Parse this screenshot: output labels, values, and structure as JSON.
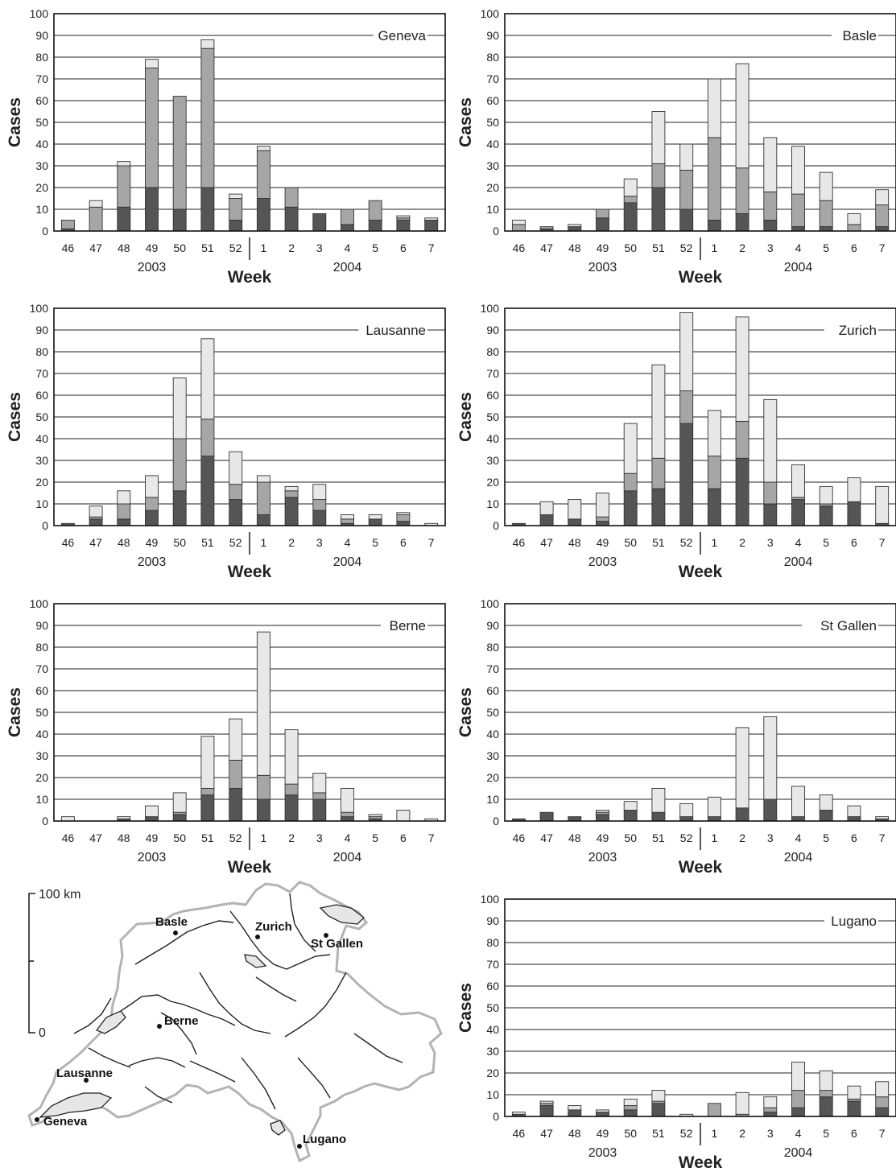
{
  "axis": {
    "ylabel": "Cases",
    "xlabel": "Week",
    "yticks": [
      0,
      10,
      20,
      30,
      40,
      50,
      60,
      70,
      80,
      90,
      100
    ],
    "week_ticks": [
      "46",
      "47",
      "48",
      "49",
      "50",
      "51",
      "52",
      "1",
      "2",
      "3",
      "4",
      "5",
      "6",
      "7"
    ],
    "year_labels": [
      "2003",
      "2004"
    ]
  },
  "colors": {
    "dark": "#555555",
    "mid": "#a6a6a6",
    "light": "#e8e8e8",
    "stroke": "#333333",
    "grid": "#222222"
  },
  "chart_data": [
    {
      "type": "bar",
      "stacked": true,
      "title": "Geneva",
      "ylim": [
        0,
        100
      ],
      "categories": [
        "46",
        "47",
        "48",
        "49",
        "50",
        "51",
        "52",
        "1",
        "2",
        "3",
        "4",
        "5",
        "6",
        "7"
      ],
      "series": [
        {
          "values": [
            1,
            0,
            11,
            20,
            10,
            20,
            5,
            15,
            11,
            8,
            3,
            5,
            5,
            5
          ]
        },
        {
          "values": [
            4,
            11,
            19,
            55,
            52,
            64,
            10,
            22,
            9,
            0,
            7,
            9,
            1,
            0
          ]
        },
        {
          "values": [
            0,
            3,
            2,
            4,
            0,
            4,
            2,
            2,
            0,
            0,
            0,
            0,
            1,
            1
          ]
        }
      ]
    },
    {
      "type": "bar",
      "stacked": true,
      "title": "Basle",
      "ylim": [
        0,
        100
      ],
      "categories": [
        "46",
        "47",
        "48",
        "49",
        "50",
        "51",
        "52",
        "1",
        "2",
        "3",
        "4",
        "5",
        "6",
        "7"
      ],
      "series": [
        {
          "values": [
            0,
            1,
            2,
            6,
            13,
            20,
            10,
            5,
            8,
            5,
            2,
            2,
            0,
            2
          ]
        },
        {
          "values": [
            3,
            1,
            0,
            4,
            3,
            11,
            18,
            38,
            21,
            13,
            15,
            12,
            3,
            10
          ]
        },
        {
          "values": [
            2,
            0,
            1,
            0,
            8,
            24,
            12,
            27,
            48,
            25,
            22,
            13,
            5,
            7
          ]
        }
      ]
    },
    {
      "type": "bar",
      "stacked": true,
      "title": "Lausanne",
      "ylim": [
        0,
        100
      ],
      "categories": [
        "46",
        "47",
        "48",
        "49",
        "50",
        "51",
        "52",
        "1",
        "2",
        "3",
        "4",
        "5",
        "6",
        "7"
      ],
      "series": [
        {
          "values": [
            1,
            3,
            3,
            7,
            16,
            32,
            12,
            5,
            13,
            7,
            1,
            3,
            2,
            0
          ]
        },
        {
          "values": [
            0,
            1,
            7,
            6,
            24,
            17,
            7,
            15,
            3,
            5,
            2,
            0,
            3,
            0
          ]
        },
        {
          "values": [
            0,
            5,
            6,
            10,
            28,
            37,
            15,
            3,
            2,
            7,
            2,
            2,
            1,
            1
          ]
        }
      ]
    },
    {
      "type": "bar",
      "stacked": true,
      "title": "Zurich",
      "ylim": [
        0,
        100
      ],
      "categories": [
        "46",
        "47",
        "48",
        "49",
        "50",
        "51",
        "52",
        "1",
        "2",
        "3",
        "4",
        "5",
        "6",
        "7"
      ],
      "series": [
        {
          "values": [
            1,
            5,
            3,
            2,
            16,
            17,
            47,
            17,
            31,
            10,
            12,
            9,
            11,
            1
          ]
        },
        {
          "values": [
            0,
            0,
            0,
            2,
            8,
            14,
            15,
            15,
            17,
            10,
            1,
            1,
            0,
            0
          ]
        },
        {
          "values": [
            0,
            6,
            9,
            11,
            23,
            43,
            36,
            21,
            48,
            38,
            15,
            8,
            11,
            17
          ]
        }
      ]
    },
    {
      "type": "bar",
      "stacked": true,
      "title": "Berne",
      "ylim": [
        0,
        100
      ],
      "categories": [
        "46",
        "47",
        "48",
        "49",
        "50",
        "51",
        "52",
        "1",
        "2",
        "3",
        "4",
        "5",
        "6",
        "7"
      ],
      "series": [
        {
          "values": [
            0,
            0,
            1,
            2,
            3,
            12,
            15,
            10,
            12,
            10,
            2,
            1,
            0,
            0
          ]
        },
        {
          "values": [
            0,
            0,
            0,
            0,
            1,
            3,
            13,
            11,
            5,
            3,
            2,
            1,
            0,
            0
          ]
        },
        {
          "values": [
            2,
            0,
            1,
            5,
            9,
            24,
            19,
            66,
            25,
            9,
            11,
            1,
            5,
            1
          ]
        }
      ]
    },
    {
      "type": "bar",
      "stacked": true,
      "title": "St Gallen",
      "ylim": [
        0,
        100
      ],
      "categories": [
        "46",
        "47",
        "48",
        "49",
        "50",
        "51",
        "52",
        "1",
        "2",
        "3",
        "4",
        "5",
        "6",
        "7"
      ],
      "series": [
        {
          "values": [
            1,
            4,
            2,
            3,
            5,
            4,
            2,
            2,
            6,
            10,
            2,
            5,
            2,
            1
          ]
        },
        {
          "values": [
            0,
            0,
            0,
            1,
            0,
            0,
            0,
            0,
            0,
            0,
            0,
            0,
            0,
            0
          ]
        },
        {
          "values": [
            0,
            0,
            0,
            1,
            4,
            11,
            6,
            9,
            37,
            38,
            14,
            7,
            5,
            1
          ]
        }
      ]
    },
    {
      "type": "bar",
      "stacked": true,
      "title": "Lugano",
      "ylim": [
        0,
        100
      ],
      "categories": [
        "46",
        "47",
        "48",
        "49",
        "50",
        "51",
        "52",
        "1",
        "2",
        "3",
        "4",
        "5",
        "6",
        "7"
      ],
      "series": [
        {
          "values": [
            1,
            5,
            3,
            2,
            3,
            6,
            0,
            0,
            0,
            2,
            4,
            9,
            7,
            4
          ]
        },
        {
          "values": [
            0,
            1,
            0,
            0,
            2,
            1,
            0,
            6,
            1,
            2,
            8,
            3,
            1,
            5
          ]
        },
        {
          "values": [
            1,
            1,
            2,
            1,
            3,
            5,
            1,
            0,
            10,
            5,
            13,
            9,
            6,
            7
          ]
        }
      ]
    }
  ],
  "map": {
    "scale_label": "100 km",
    "scale_zero": "0",
    "cities": [
      {
        "name": "Basle"
      },
      {
        "name": "Zurich"
      },
      {
        "name": "St Gallen"
      },
      {
        "name": "Berne"
      },
      {
        "name": "Lausanne"
      },
      {
        "name": "Geneva"
      },
      {
        "name": "Lugano"
      }
    ]
  }
}
